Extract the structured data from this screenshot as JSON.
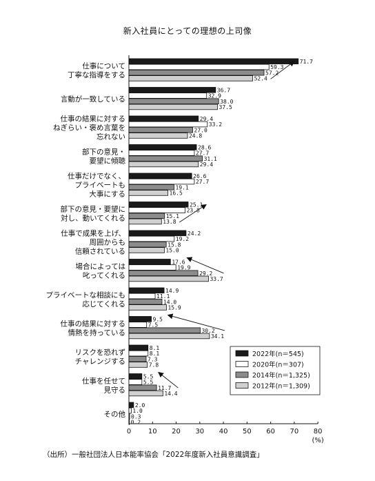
{
  "chart_data": {
    "type": "bar",
    "orientation": "horizontal",
    "title": "新入社員にとっての理想の上司像",
    "xunit": "(%)",
    "xlim": [
      0,
      80
    ],
    "xticks": [
      "0",
      "10",
      "20",
      "30",
      "40",
      "50",
      "60",
      "70",
      "80"
    ],
    "legend_position": "lower-right",
    "categories": [
      [
        "仕事について",
        "丁寧な指導をする"
      ],
      [
        "言動が一致している"
      ],
      [
        "仕事の結果に対する",
        "ねぎらい・褒め言葉を",
        "忘れない"
      ],
      [
        "部下の意見・",
        "要望に傾聴"
      ],
      [
        "仕事だけでなく、",
        "プライベートも",
        "大事にする"
      ],
      [
        "部下の意見・要望に",
        "対し、動いてくれる"
      ],
      [
        "仕事で成果を上げ、",
        "周囲からも",
        "信頼されている"
      ],
      [
        "場合によっては",
        "叱ってくれる"
      ],
      [
        "プライベートな相談にも",
        "応じてくれる"
      ],
      [
        "仕事の結果に対する",
        "情熱を持っている"
      ],
      [
        "リスクを恐れず",
        "チャレンジする"
      ],
      [
        "仕事を任せて",
        "見守る"
      ],
      [
        "その他"
      ]
    ],
    "series": [
      {
        "name": "2022年(n＝545)",
        "color": "#1a1a1a",
        "values": [
          71.7,
          36.7,
          29.4,
          28.6,
          26.6,
          25.1,
          24.2,
          17.6,
          14.9,
          9.5,
          8.1,
          5.5,
          2.0
        ],
        "labels": [
          "71.7",
          "36.7",
          "29.4",
          "28.6",
          "26.6",
          "25.1",
          "24.2",
          "17.6",
          "14.9",
          "9.5",
          "8.1",
          "5.5",
          "2.0"
        ]
      },
      {
        "name": "2020年(n＝307)",
        "color": "#ffffff",
        "values": [
          59.3,
          32.9,
          33.2,
          27.7,
          27.7,
          23.8,
          19.2,
          19.9,
          11.1,
          7.5,
          8.1,
          5.5,
          1.0
        ],
        "labels": [
          "59.3",
          "32.9",
          "33.2",
          "27.7",
          "27.7",
          "23.8",
          "19.2",
          "19.9",
          "11.1",
          "7.5",
          "8.1",
          "5.5",
          "1.0"
        ]
      },
      {
        "name": "2014年(n＝1,325)",
        "color": "#8c8c8c",
        "values": [
          57.2,
          38.0,
          27.0,
          31.1,
          19.1,
          15.1,
          15.8,
          29.2,
          14.0,
          30.2,
          7.3,
          11.7,
          0.3
        ],
        "labels": [
          "57.2",
          "38.0",
          "27.0",
          "31.1",
          "19.1",
          "15.1",
          "15.8",
          "29.2",
          "14.0",
          "30.2",
          "7.3",
          "11.7",
          "0.3"
        ]
      },
      {
        "name": "2012年(n＝1,309)",
        "color": "#d0d0d0",
        "values": [
          52.4,
          37.5,
          24.8,
          29.4,
          16.5,
          13.8,
          15.0,
          33.7,
          15.9,
          34.1,
          7.8,
          14.4,
          0.2
        ],
        "labels": [
          "52.4",
          "37.5",
          "24.8",
          "29.4",
          "16.5",
          "13.8",
          "15.0",
          "33.7",
          "15.9",
          "34.1",
          "7.8",
          "14.4",
          "0.2"
        ]
      }
    ],
    "annotations": [
      {
        "type": "arrow",
        "from": {
          "category": 0,
          "value": 52.4
        },
        "to": {
          "category": 0,
          "value": 71.7
        }
      },
      {
        "type": "arrow",
        "from": {
          "category": 5,
          "value": 13.8
        },
        "to": {
          "category": 5,
          "value": 25.1
        }
      },
      {
        "type": "arrow",
        "from": {
          "category": 7,
          "value": 33.7
        },
        "to": {
          "category": 7,
          "value": 17.6
        }
      },
      {
        "type": "arrow",
        "from": {
          "category": 9,
          "value": 34.1
        },
        "to": {
          "category": 9,
          "value": 9.5
        }
      },
      {
        "type": "arrow",
        "from": {
          "category": 11,
          "value": 14.4
        },
        "to": {
          "category": 11,
          "value": 5.5
        }
      }
    ]
  },
  "source": "（出所）一般社団法人日本能率協会「2022年度新入社員意識調査」"
}
